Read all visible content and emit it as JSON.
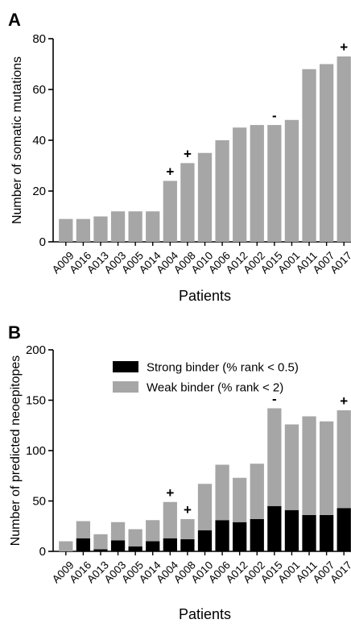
{
  "chart_data": [
    {
      "type": "bar",
      "panel": "A",
      "categories": [
        "A009",
        "A016",
        "A013",
        "A003",
        "A005",
        "A014",
        "A004",
        "A008",
        "A010",
        "A006",
        "A012",
        "A002",
        "A015",
        "A001",
        "A011",
        "A007",
        "A017"
      ],
      "values": [
        9,
        9,
        10,
        12,
        12,
        12,
        24,
        31,
        35,
        40,
        45,
        46,
        46,
        48,
        68,
        70,
        73
      ],
      "annotations": [
        "",
        "",
        "",
        "",
        "",
        "",
        "+",
        "+",
        "",
        "",
        "",
        "",
        "-",
        "",
        "",
        "",
        "+"
      ],
      "xlabel": "Patients",
      "ylabel": "Number of somatic mutations",
      "ylim": [
        0,
        80
      ],
      "yticks": [
        0,
        20,
        40,
        60,
        80
      ],
      "colors": {
        "bars": "#a6a6a6"
      },
      "grid": false
    },
    {
      "type": "bar",
      "stacked": true,
      "panel": "B",
      "categories": [
        "A009",
        "A016",
        "A013",
        "A003",
        "A005",
        "A014",
        "A004",
        "A008",
        "A010",
        "A006",
        "A012",
        "A002",
        "A015",
        "A001",
        "A011",
        "A007",
        "A017"
      ],
      "series": [
        {
          "name": "Strong binder (% rank < 0.5)",
          "color": "#000000",
          "values": [
            0,
            13,
            2,
            11,
            5,
            10,
            13,
            12,
            21,
            31,
            29,
            32,
            45,
            41,
            36,
            36,
            43
          ]
        },
        {
          "name": "Weak binder (% rank < 2)",
          "color": "#a6a6a6",
          "values": [
            10,
            17,
            15,
            18,
            17,
            21,
            36,
            20,
            46,
            55,
            44,
            55,
            97,
            85,
            98,
            93,
            97
          ]
        }
      ],
      "annotations": [
        "",
        "",
        "",
        "",
        "",
        "",
        "+",
        "+",
        "",
        "",
        "",
        "",
        "-",
        "",
        "",
        "",
        "+"
      ],
      "xlabel": "Patients",
      "ylabel": "Number of predicted neoepitopes",
      "ylim": [
        0,
        200
      ],
      "yticks": [
        0,
        50,
        100,
        150,
        200
      ],
      "legend_position": "top-right",
      "grid": false
    }
  ]
}
